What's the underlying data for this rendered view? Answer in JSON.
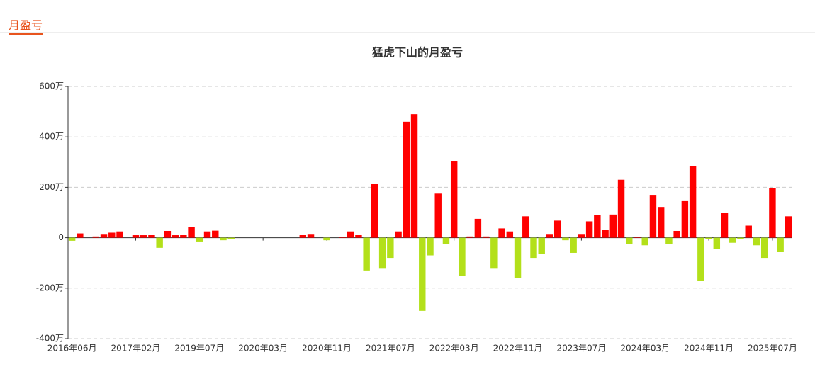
{
  "header": {
    "tab": "月盈亏"
  },
  "chart_data": {
    "type": "bar",
    "title": "猛虎下山的月盈亏",
    "categories": [
      "2016年06月",
      null,
      null,
      null,
      null,
      null,
      null,
      null,
      "2017年02月",
      null,
      null,
      null,
      null,
      null,
      null,
      null,
      "2019年07月",
      null,
      null,
      null,
      null,
      null,
      null,
      null,
      "2020年03月",
      null,
      null,
      null,
      null,
      null,
      null,
      null,
      "2020年11月",
      null,
      null,
      null,
      null,
      null,
      null,
      null,
      "2021年07月",
      null,
      null,
      null,
      null,
      null,
      null,
      null,
      "2022年03月",
      null,
      null,
      null,
      null,
      null,
      null,
      null,
      "2022年11月",
      null,
      null,
      null,
      null,
      null,
      null,
      null,
      "2023年07月",
      null,
      null,
      null,
      null,
      null,
      null,
      null,
      "2024年03月",
      null,
      null,
      null,
      null,
      null,
      null,
      null,
      "2024年11月",
      null,
      null,
      null,
      null,
      null,
      null,
      null,
      "2025年07月",
      null,
      null
    ],
    "values": [
      -12,
      17,
      0,
      5,
      15,
      20,
      25,
      0,
      10,
      10,
      12,
      -40,
      27,
      10,
      12,
      42,
      -15,
      25,
      28,
      -10,
      -5,
      0,
      0,
      0,
      0,
      0,
      0,
      0,
      0,
      12,
      15,
      0,
      -10,
      0,
      3,
      25,
      12,
      -130,
      215,
      -120,
      -80,
      25,
      460,
      490,
      -290,
      -70,
      175,
      -25,
      305,
      -150,
      5,
      75,
      5,
      -120,
      37,
      25,
      -160,
      85,
      -80,
      -65,
      15,
      68,
      -10,
      -60,
      15,
      65,
      90,
      30,
      92,
      230,
      -25,
      2,
      -30,
      170,
      122,
      -25,
      27,
      148,
      285,
      -170,
      -5,
      -45,
      98,
      -20,
      -5,
      48,
      -30,
      -80,
      198,
      -55,
      85
    ],
    "positive_color": "#ff0000",
    "negative_color": "#b3e01a",
    "ylim": [
      -400,
      600
    ],
    "yticks": [
      {
        "value": -400,
        "label": "-400万"
      },
      {
        "value": -200,
        "label": "-200万"
      },
      0,
      {
        "value": 200,
        "label": "200万"
      },
      {
        "value": 400,
        "label": "400万"
      },
      {
        "value": 600,
        "label": "600万"
      }
    ],
    "grid": true
  }
}
